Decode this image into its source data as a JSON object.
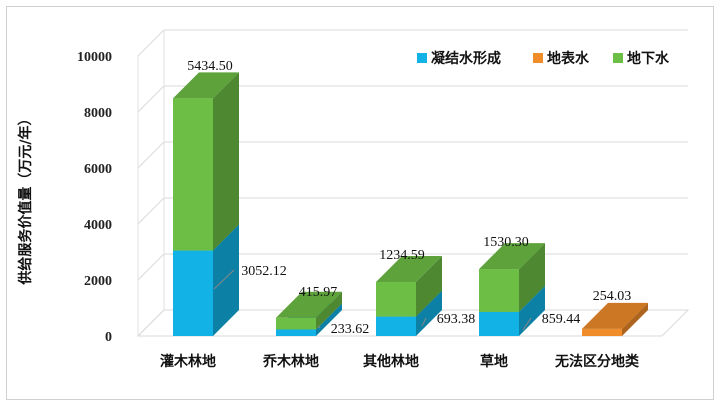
{
  "chart_data": {
    "type": "bar",
    "stacked": true,
    "style": "3d-column",
    "ylabel": "供给服务价值量（万元/年）",
    "ylim": [
      0,
      10000
    ],
    "yticks": [
      0,
      2000,
      4000,
      6000,
      8000,
      10000
    ],
    "grid": true,
    "legend_position": "top-right",
    "categories": [
      "灌木林地",
      "乔木林地",
      "其他林地",
      "草地",
      "无法区分地类"
    ],
    "series": [
      {
        "name": "凝结水形成",
        "color": "#12B2E6",
        "values": [
          3052.12,
          233.62,
          693.38,
          859.44,
          0
        ]
      },
      {
        "name": "地表水",
        "color": "#F08C2A",
        "values": [
          0,
          0,
          0,
          0,
          254.03
        ]
      },
      {
        "name": "地下水",
        "color": "#6DBE45",
        "values": [
          5434.5,
          415.97,
          1234.59,
          1530.3,
          0
        ]
      }
    ]
  }
}
